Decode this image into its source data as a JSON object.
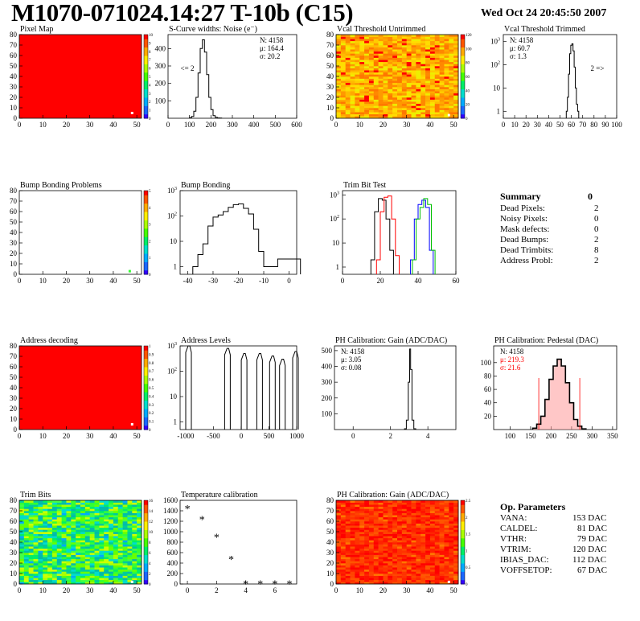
{
  "header": {
    "title": "M1070-071024.14:27 T-10b (C15)",
    "date": "Wed Oct 24 20:45:50 2007"
  },
  "colors": {
    "red": "#ff0000",
    "axis": "#000000",
    "hist_black": "#000000",
    "hist_red": "#ff0000",
    "hist_blue": "#0000ff",
    "hist_green": "#00c000",
    "palette_low": "#3300ff",
    "palette_high": "#ff0000"
  },
  "summary": {
    "title": "Summary",
    "total": "0",
    "rows": [
      {
        "label": "Dead Pixels:",
        "value": "2"
      },
      {
        "label": "Noisy Pixels:",
        "value": "0"
      },
      {
        "label": "Mask defects:",
        "value": "0"
      },
      {
        "label": "Dead Bumps:",
        "value": "2"
      },
      {
        "label": "Dead Trimbits:",
        "value": "8"
      },
      {
        "label": "Address Probl:",
        "value": "2"
      }
    ]
  },
  "op_parameters": {
    "title": "Op. Parameters",
    "rows": [
      {
        "label": "VANA:",
        "value": "153 DAC"
      },
      {
        "label": "CALDEL:",
        "value": "81 DAC"
      },
      {
        "label": "VTHR:",
        "value": "79 DAC"
      },
      {
        "label": "VTRIM:",
        "value": "120 DAC"
      },
      {
        "label": "IBIAS_DAC:",
        "value": "112 DAC"
      },
      {
        "label": "VOFFSETOP:",
        "value": "67 DAC"
      }
    ]
  },
  "chart_data": [
    {
      "id": "pixel-map",
      "type": "heatmap",
      "title": "Pixel Map",
      "xlim": [
        0,
        52
      ],
      "ylim": [
        0,
        80
      ],
      "xticks": [
        0,
        10,
        20,
        30,
        40,
        50
      ],
      "yticks": [
        0,
        10,
        20,
        30,
        40,
        50,
        60,
        70,
        80
      ],
      "fill": "uniform-red",
      "z_range": [
        0,
        10
      ],
      "zticks": [
        "0",
        "1",
        "2",
        "3",
        "4",
        "5",
        "6",
        "7",
        "8",
        "9",
        "10"
      ],
      "markers": [
        {
          "x": 48,
          "y": 5
        }
      ]
    },
    {
      "id": "scurve",
      "type": "histogram",
      "title": "S-Curve widths: Noise (e⁻)",
      "xlim": [
        0,
        600
      ],
      "ylim": [
        0,
        480
      ],
      "log_y": false,
      "xticks": [
        0,
        100,
        200,
        300,
        400,
        500,
        600
      ],
      "yticks": [
        100,
        200,
        300,
        400
      ],
      "stats": [
        {
          "text": "N: 4158"
        },
        {
          "text": "μ: 164.4"
        },
        {
          "text": "σ: 20.2"
        }
      ],
      "annotation": "<= 2",
      "series": [
        {
          "color": "black",
          "x": [
            105,
            115,
            125,
            135,
            145,
            155,
            165,
            175,
            185,
            195,
            205,
            215,
            225,
            235,
            245
          ],
          "y": [
            3,
            10,
            40,
            120,
            260,
            400,
            450,
            380,
            250,
            120,
            50,
            15,
            5,
            2,
            1
          ]
        }
      ]
    },
    {
      "id": "vcal-untrimmed",
      "type": "heatmap",
      "title": "Vcal Threshold Untrimmed",
      "xlim": [
        0,
        52
      ],
      "ylim": [
        0,
        80
      ],
      "xticks": [
        0,
        10,
        20,
        30,
        40,
        50
      ],
      "yticks": [
        0,
        10,
        20,
        30,
        40,
        50,
        60,
        70,
        80
      ],
      "fill": "noise-orange-yellow",
      "z_range": [
        0,
        130
      ],
      "zticks": [
        "0",
        "20",
        "40",
        "60",
        "80",
        "100",
        "120"
      ],
      "markers": [
        {
          "x": 48,
          "y": 3
        }
      ]
    },
    {
      "id": "vcal-trimmed",
      "type": "histogram",
      "title": "Vcal Threshold Trimmed",
      "xlim": [
        0,
        100
      ],
      "ylim": [
        0.5,
        2000
      ],
      "log_y": true,
      "xticks": [
        0,
        10,
        20,
        30,
        40,
        50,
        60,
        70,
        80,
        90,
        100
      ],
      "yticks": [
        1,
        10,
        100,
        1000
      ],
      "stats": [
        {
          "text": "N: 4158"
        },
        {
          "text": "μ: 60.7"
        },
        {
          "text": "σ: 1.3"
        }
      ],
      "annotation": "2 =>",
      "series": [
        {
          "color": "black",
          "x": [
            56,
            57,
            58,
            59,
            60,
            61,
            62,
            63,
            64,
            65,
            66
          ],
          "y": [
            1,
            4,
            40,
            300,
            700,
            800,
            400,
            80,
            10,
            2,
            1
          ]
        }
      ]
    },
    {
      "id": "bump-problems",
      "type": "heatmap",
      "title": "Bump Bonding Problems",
      "xlim": [
        0,
        52
      ],
      "ylim": [
        0,
        80
      ],
      "xticks": [
        0,
        10,
        20,
        30,
        40,
        50
      ],
      "yticks": [
        0,
        10,
        20,
        30,
        40,
        50,
        60,
        70,
        80
      ],
      "fill": "empty",
      "z_range": [
        0,
        5
      ],
      "zticks": [
        "0",
        "1",
        "2",
        "3",
        "4",
        "5"
      ],
      "markers": [
        {
          "x": 47,
          "y": 3,
          "color": "#33ff33"
        }
      ]
    },
    {
      "id": "bump-bonding",
      "type": "histogram",
      "title": "Bump Bonding",
      "xlim": [
        -43,
        3
      ],
      "ylim": [
        0.5,
        1000
      ],
      "log_y": true,
      "xticks": [
        -40,
        -30,
        -20,
        -10,
        0
      ],
      "yticks": [
        1,
        10,
        100,
        1000
      ],
      "stats": [],
      "series": [
        {
          "color": "black",
          "x": [
            -37,
            -35,
            -33,
            -31,
            -29,
            -27,
            -25,
            -23,
            -21,
            -19,
            -17,
            -15,
            -13,
            -11,
            -9,
            0
          ],
          "y": [
            1,
            3,
            8,
            40,
            90,
            110,
            150,
            220,
            280,
            300,
            200,
            120,
            30,
            4,
            1,
            2
          ]
        }
      ]
    },
    {
      "id": "trim-bit-test",
      "type": "histogram",
      "title": "Trim Bit Test",
      "xlim": [
        0,
        60
      ],
      "ylim": [
        0.5,
        1500
      ],
      "log_y": true,
      "xticks": [
        0,
        20,
        40,
        60
      ],
      "yticks": [
        1,
        10,
        100,
        1000
      ],
      "stats": [],
      "series": [
        {
          "color": "black",
          "x": [
            16,
            18,
            20,
            22,
            24,
            26
          ],
          "y": [
            2,
            200,
            700,
            600,
            100,
            5
          ]
        },
        {
          "color": "red",
          "x": [
            19,
            21,
            23,
            25,
            27,
            29
          ],
          "y": [
            2,
            200,
            800,
            900,
            100,
            3
          ]
        },
        {
          "color": "blue",
          "x": [
            37,
            39,
            41,
            43,
            45,
            47
          ],
          "y": [
            2,
            100,
            400,
            600,
            300,
            5
          ]
        },
        {
          "color": "green",
          "x": [
            38,
            40,
            42,
            44,
            46,
            48
          ],
          "y": [
            2,
            100,
            300,
            700,
            400,
            5
          ]
        }
      ]
    },
    {
      "id": "address-decoding",
      "type": "heatmap",
      "title": "Address decoding",
      "xlim": [
        0,
        52
      ],
      "ylim": [
        0,
        80
      ],
      "xticks": [
        0,
        10,
        20,
        30,
        40,
        50
      ],
      "yticks": [
        0,
        10,
        20,
        30,
        40,
        50,
        60,
        70,
        80
      ],
      "fill": "uniform-red",
      "z_range": [
        0,
        1
      ],
      "zticks": [
        "0",
        "0.1",
        "0.2",
        "0.3",
        "0.4",
        "0.5",
        "0.6",
        "0.7",
        "0.8",
        "0.9",
        "1"
      ],
      "markers": [
        {
          "x": 48,
          "y": 5
        }
      ]
    },
    {
      "id": "address-levels",
      "type": "histogram",
      "title": "Address Levels",
      "xlim": [
        -1100,
        1000
      ],
      "ylim": [
        0.5,
        1000
      ],
      "log_y": true,
      "xticks": [
        -1000,
        -500,
        0,
        500,
        1000
      ],
      "yticks": [
        1,
        10,
        100,
        1000
      ],
      "stats": [],
      "series": [
        {
          "color": "black",
          "x": [
            -940,
            -240,
            60,
            340,
            570,
            750,
            985
          ],
          "y": [
            1000,
            800,
            500,
            500,
            400,
            300,
            600
          ]
        }
      ]
    },
    {
      "id": "ph-gain",
      "type": "histogram",
      "title": "PH Calibration: Gain (ADC/DAC)",
      "xlim": [
        -1,
        5.5
      ],
      "ylim": [
        0,
        530
      ],
      "log_y": false,
      "xticks": [
        0,
        2,
        4
      ],
      "yticks": [
        100,
        200,
        300,
        400,
        500
      ],
      "stats": [
        {
          "text": "N: 4158"
        },
        {
          "text": "μ: 3.05"
        },
        {
          "text": "σ: 0.08"
        }
      ],
      "series": [
        {
          "color": "black",
          "x": [
            2.8,
            2.9,
            3.0,
            3.05,
            3.1,
            3.2,
            3.3
          ],
          "y": [
            5,
            60,
            300,
            510,
            380,
            60,
            5
          ]
        }
      ]
    },
    {
      "id": "ph-pedestal",
      "type": "histogram",
      "title": "PH Calibration: Pedestal (DAC)",
      "xlim": [
        60,
        360
      ],
      "ylim": [
        0,
        125
      ],
      "log_y": false,
      "xticks": [
        100,
        150,
        200,
        250,
        300,
        350
      ],
      "yticks": [
        20,
        40,
        60,
        80,
        100
      ],
      "stats": [
        {
          "text": "N: 4158"
        },
        {
          "text": "μ: 219.3",
          "color": "red"
        },
        {
          "text": "σ: 21.6",
          "color": "red"
        }
      ],
      "cut_lines": [
        170,
        270
      ],
      "series": [
        {
          "color": "black",
          "x": [
            160,
            170,
            180,
            190,
            200,
            210,
            220,
            230,
            240,
            250,
            260,
            270,
            280
          ],
          "y": [
            2,
            8,
            20,
            45,
            75,
            95,
            105,
            95,
            70,
            40,
            15,
            5,
            1
          ]
        }
      ]
    },
    {
      "id": "trim-bits",
      "type": "heatmap",
      "title": "Trim Bits",
      "xlim": [
        0,
        52
      ],
      "ylim": [
        0,
        80
      ],
      "xticks": [
        0,
        10,
        20,
        30,
        40,
        50
      ],
      "yticks": [
        0,
        10,
        20,
        30,
        40,
        50,
        60,
        70,
        80
      ],
      "fill": "noise-green",
      "z_range": [
        0,
        16
      ],
      "zticks": [
        "0",
        "2",
        "4",
        "6",
        "8",
        "10",
        "12",
        "14",
        "16"
      ],
      "markers": [
        {
          "x": 48,
          "y": 2
        }
      ]
    },
    {
      "id": "temp-calibration",
      "type": "scatter",
      "title": "Temperature calibration",
      "xlim": [
        -0.5,
        7.5
      ],
      "ylim": [
        0,
        1600
      ],
      "xticks": [
        0,
        2,
        4,
        6
      ],
      "yticks": [
        0,
        200,
        400,
        600,
        800,
        1000,
        1200,
        1400,
        1600
      ],
      "series": [
        {
          "color": "black",
          "x": [
            0,
            1,
            2,
            3,
            4,
            5,
            6,
            7
          ],
          "y": [
            1450,
            1240,
            900,
            480,
            10,
            10,
            10,
            10
          ]
        }
      ]
    },
    {
      "id": "ph-gain-map",
      "type": "heatmap",
      "title": "PH Calibration: Gain (ADC/DAC)",
      "xlim": [
        0,
        52
      ],
      "ylim": [
        0,
        80
      ],
      "xticks": [
        0,
        10,
        20,
        30,
        40,
        50
      ],
      "yticks": [
        0,
        10,
        20,
        30,
        40,
        50,
        60,
        70,
        80
      ],
      "fill": "noise-red",
      "z_range": [
        0,
        3
      ],
      "zticks": [
        "0",
        "0.5",
        "1",
        "1.5",
        "2",
        "2.5"
      ],
      "markers": [
        {
          "x": 48,
          "y": 2
        }
      ]
    }
  ]
}
